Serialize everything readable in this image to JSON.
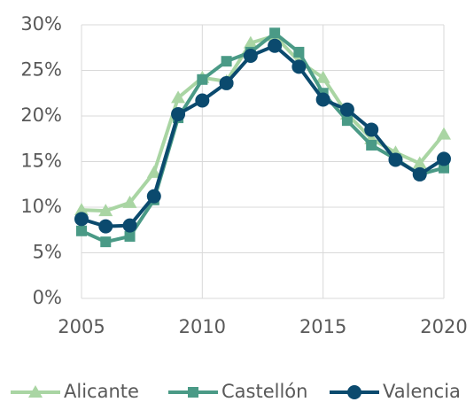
{
  "chart_data": {
    "type": "line",
    "x": [
      2005,
      2006,
      2007,
      2008,
      2009,
      2010,
      2011,
      2012,
      2013,
      2014,
      2015,
      2016,
      2017,
      2018,
      2019,
      2020
    ],
    "series": [
      {
        "name": "Alicante",
        "color": "#a9d5a3",
        "marker": "triangle",
        "values": [
          9.7,
          9.6,
          10.5,
          13.8,
          22,
          24.2,
          23.8,
          28,
          28.8,
          26,
          24.2,
          20.2,
          17.5,
          16,
          14.8,
          18
        ]
      },
      {
        "name": "Castellón",
        "color": "#4a9a86",
        "marker": "square",
        "values": [
          7.4,
          6.2,
          6.8,
          10.8,
          19.8,
          24,
          26,
          27,
          29.1,
          27,
          22.5,
          19.5,
          16.8,
          15.3,
          13.6,
          14.3
        ]
      },
      {
        "name": "Valencia",
        "color": "#0b4a6e",
        "marker": "circle",
        "values": [
          8.7,
          7.9,
          8,
          11.2,
          20.2,
          21.7,
          23.6,
          26.6,
          27.7,
          25.4,
          21.8,
          20.7,
          18.5,
          15.2,
          13.6,
          15.3
        ]
      }
    ],
    "xlim": [
      2005,
      2020
    ],
    "xticks": [
      2005,
      2010,
      2015,
      2020
    ],
    "ylim": [
      0,
      30
    ],
    "yticks": [
      {
        "value": 0,
        "label": "0%"
      },
      {
        "value": 5,
        "label": "5%"
      },
      {
        "value": 10,
        "label": "10%"
      },
      {
        "value": 15,
        "label": "15%"
      },
      {
        "value": 20,
        "label": "20%"
      },
      {
        "value": 25,
        "label": "25%"
      },
      {
        "value": 30,
        "label": "30%"
      }
    ],
    "grid": true,
    "legend": "bottom"
  }
}
